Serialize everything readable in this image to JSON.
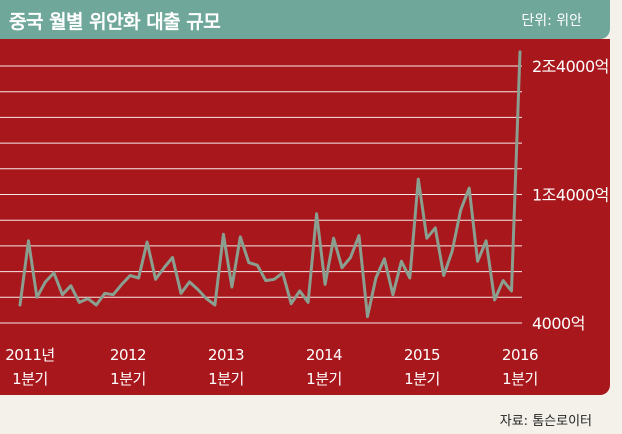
{
  "header": {
    "title": "중국 월별 위안화 대출 규모",
    "unit": "단위: 위안"
  },
  "footer": {
    "source": "자료: 톰슨로이터"
  },
  "colors": {
    "header_bg": "#6fa89b",
    "panel_bg": "#a8171c",
    "line": "#8a9f8f",
    "grid": "#ffffff"
  },
  "chart_data": {
    "type": "line",
    "ylim": [
      4000,
      24000
    ],
    "y_unit_note": "억 위안",
    "y_ticks": [
      {
        "value": 24000,
        "label": "2조4000억"
      },
      {
        "value": 14000,
        "label": "1조4000억"
      },
      {
        "value": 4000,
        "label": "4000억"
      }
    ],
    "x_ticks": [
      {
        "label": [
          "2011년",
          "1분기"
        ]
      },
      {
        "label": [
          "2012",
          "1분기"
        ]
      },
      {
        "label": [
          "2013",
          "1분기"
        ]
      },
      {
        "label": [
          "2014",
          "1분기"
        ]
      },
      {
        "label": [
          "2015",
          "1분기"
        ]
      },
      {
        "label": [
          "2016",
          "1분기"
        ]
      }
    ],
    "grid": true,
    "series": [
      {
        "values": [
          5400,
          10400,
          6000,
          7200,
          7900,
          6200,
          6900,
          5600,
          5900,
          5400,
          6300,
          6200,
          7000,
          7700,
          7500,
          10300,
          7400,
          8300,
          9100,
          6300,
          7200,
          6600,
          5900,
          5400,
          10900,
          6800,
          10700,
          8700,
          8500,
          7300,
          7400,
          7900,
          5500,
          6500,
          5600,
          12500,
          7000,
          10600,
          8300,
          9100,
          10800,
          4500,
          7500,
          9000,
          6200,
          8800,
          7500,
          15200,
          10600,
          11400,
          7700,
          9600,
          12800,
          14500,
          8800,
          10400,
          5800,
          7300,
          6500,
          25100
        ]
      }
    ]
  }
}
